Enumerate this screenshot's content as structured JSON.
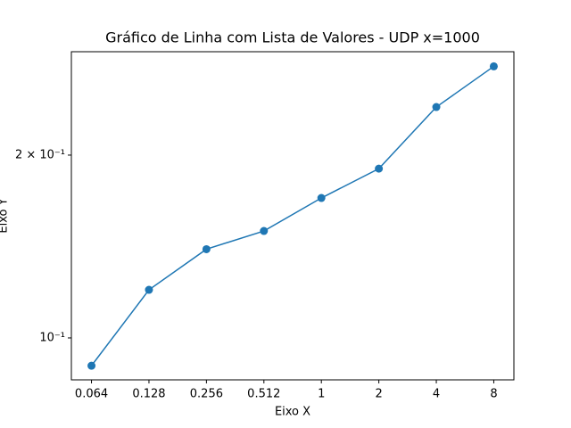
{
  "chart_data": {
    "type": "line",
    "title": "Gráfico de Linha com Lista de Valores - UDP x=1000",
    "x_label": "Eixo X",
    "y_label": "Eixo Y",
    "categories": [
      "0.064",
      "0.128",
      "0.256",
      "0.512",
      "1",
      "2",
      "4",
      "8"
    ],
    "values": [
      0.09,
      0.12,
      0.14,
      0.15,
      0.17,
      0.19,
      0.24,
      0.28
    ],
    "color": "#1f77b4",
    "yscale": "log",
    "ylim": [
      0.0853,
      0.296
    ],
    "yticks": [
      {
        "value": 0.1,
        "label": "10⁻¹"
      },
      {
        "value": 0.2,
        "label": "2 × 10⁻¹"
      }
    ],
    "grid": false
  }
}
